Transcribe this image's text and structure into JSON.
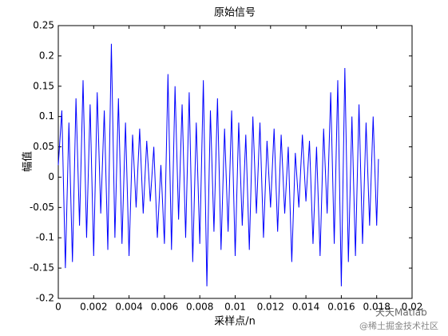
{
  "chart_data": {
    "type": "line",
    "title": "原始信号",
    "x_label": "采样点/n",
    "y_label": "幅值",
    "color": "#0000ff",
    "x": [
      0,
      0.0002,
      0.0004,
      0.0006,
      0.0008,
      0.001,
      0.0012,
      0.0014,
      0.0016,
      0.0018,
      0.002,
      0.0022,
      0.0024,
      0.0026,
      0.0028,
      0.003,
      0.0032,
      0.0034,
      0.0036,
      0.0038,
      0.004,
      0.0042,
      0.0044,
      0.0046,
      0.0048,
      0.005,
      0.0052,
      0.0054,
      0.0056,
      0.0058,
      0.006,
      0.0062,
      0.0064,
      0.0066,
      0.0068,
      0.007,
      0.0072,
      0.0074,
      0.0076,
      0.0078,
      0.008,
      0.0082,
      0.0084,
      0.0086,
      0.0088,
      0.009,
      0.0092,
      0.0094,
      0.0096,
      0.0098,
      0.01,
      0.0102,
      0.0104,
      0.0106,
      0.0108,
      0.011,
      0.0112,
      0.0114,
      0.0116,
      0.0118,
      0.012,
      0.0122,
      0.0124,
      0.0126,
      0.0128,
      0.013,
      0.0132,
      0.0134,
      0.0136,
      0.0138,
      0.014,
      0.0142,
      0.0144,
      0.0146,
      0.0148,
      0.015,
      0.0152,
      0.0154,
      0.0156,
      0.0158,
      0.016,
      0.0162,
      0.0164,
      0.0166,
      0.0168,
      0.017,
      0.0172,
      0.0174,
      0.0176,
      0.0178,
      0.018,
      0.0181
    ],
    "values": [
      0.02,
      0.11,
      -0.15,
      0.09,
      -0.14,
      0.13,
      -0.08,
      0.16,
      -0.1,
      0.12,
      -0.13,
      0.14,
      -0.06,
      0.11,
      -0.12,
      0.22,
      -0.1,
      0.13,
      -0.11,
      0.09,
      -0.13,
      0.07,
      -0.05,
      0.08,
      -0.06,
      0.06,
      -0.04,
      0.05,
      -0.1,
      0.02,
      -0.11,
      0.17,
      -0.12,
      0.15,
      -0.07,
      0.12,
      -0.1,
      0.14,
      -0.14,
      0.09,
      -0.11,
      0.16,
      -0.18,
      0.11,
      -0.09,
      0.13,
      -0.12,
      0.08,
      -0.09,
      0.11,
      -0.13,
      0.09,
      -0.08,
      0.07,
      -0.12,
      0.1,
      -0.06,
      0.09,
      -0.1,
      0.06,
      -0.05,
      0.08,
      -0.09,
      0.07,
      -0.06,
      0.05,
      -0.14,
      0.04,
      -0.05,
      0.07,
      -0.04,
      0.06,
      -0.11,
      0.05,
      -0.13,
      0.08,
      -0.06,
      0.14,
      -0.11,
      0.16,
      -0.18,
      0.18,
      -0.14,
      0.1,
      -0.13,
      0.12,
      -0.11,
      0.09,
      -0.08,
      0.1,
      -0.08,
      0.03
    ],
    "xlim": [
      0,
      0.02
    ],
    "xticks": [
      0,
      0.002,
      0.004,
      0.006,
      0.008,
      0.01,
      0.012,
      0.014,
      0.016,
      0.018,
      0.02
    ],
    "ylim": [
      -0.2,
      0.25
    ],
    "yticks": [
      -0.2,
      -0.15,
      -0.1,
      -0.05,
      0,
      0.05,
      0.1,
      0.15,
      0.2,
      0.25
    ],
    "annotations": [
      "天天Matlab",
      "@稀土掘金技术社区"
    ]
  }
}
